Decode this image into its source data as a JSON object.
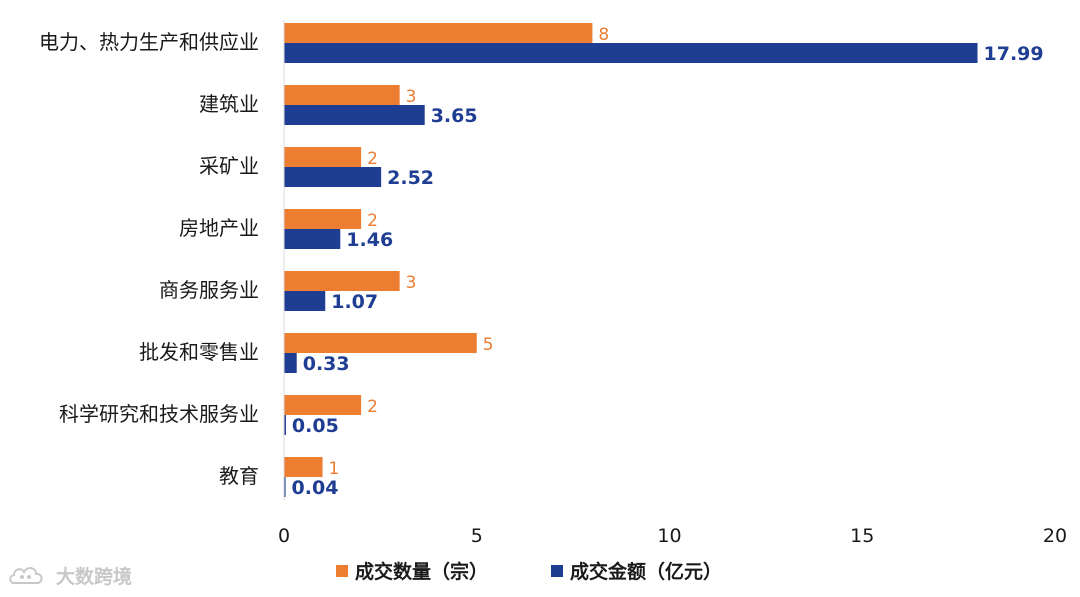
{
  "chart_data": {
    "type": "bar",
    "orientation": "horizontal",
    "categories": [
      "电力、热力生产和供应业",
      "建筑业",
      "采矿业",
      "房地产业",
      "商务服务业",
      "批发和零售业",
      "科学研究和技术服务业",
      "教育"
    ],
    "series": [
      {
        "name": "成交数量（宗）",
        "color": "#ED7D31",
        "values": [
          8,
          3,
          2,
          2,
          3,
          5,
          2,
          1
        ],
        "labels": [
          "8",
          "3",
          "2",
          "2",
          "3",
          "5",
          "2",
          "1"
        ]
      },
      {
        "name": "成交金额（亿元）",
        "color": "#1F3E93",
        "values": [
          17.99,
          3.65,
          2.52,
          1.46,
          1.07,
          0.33,
          0.05,
          0.04
        ],
        "labels": [
          "17.99",
          "3.65",
          "2.52",
          "1.46",
          "1.07",
          "0.33",
          "0.05",
          "0.04"
        ]
      }
    ],
    "xlim": [
      0,
      20
    ],
    "xticks": [
      "0",
      "5",
      "10",
      "15",
      "20"
    ],
    "legend_position": "bottom",
    "grid": false
  },
  "watermark": {
    "text": "大数跨境",
    "icon": "cloud-logo-icon"
  }
}
